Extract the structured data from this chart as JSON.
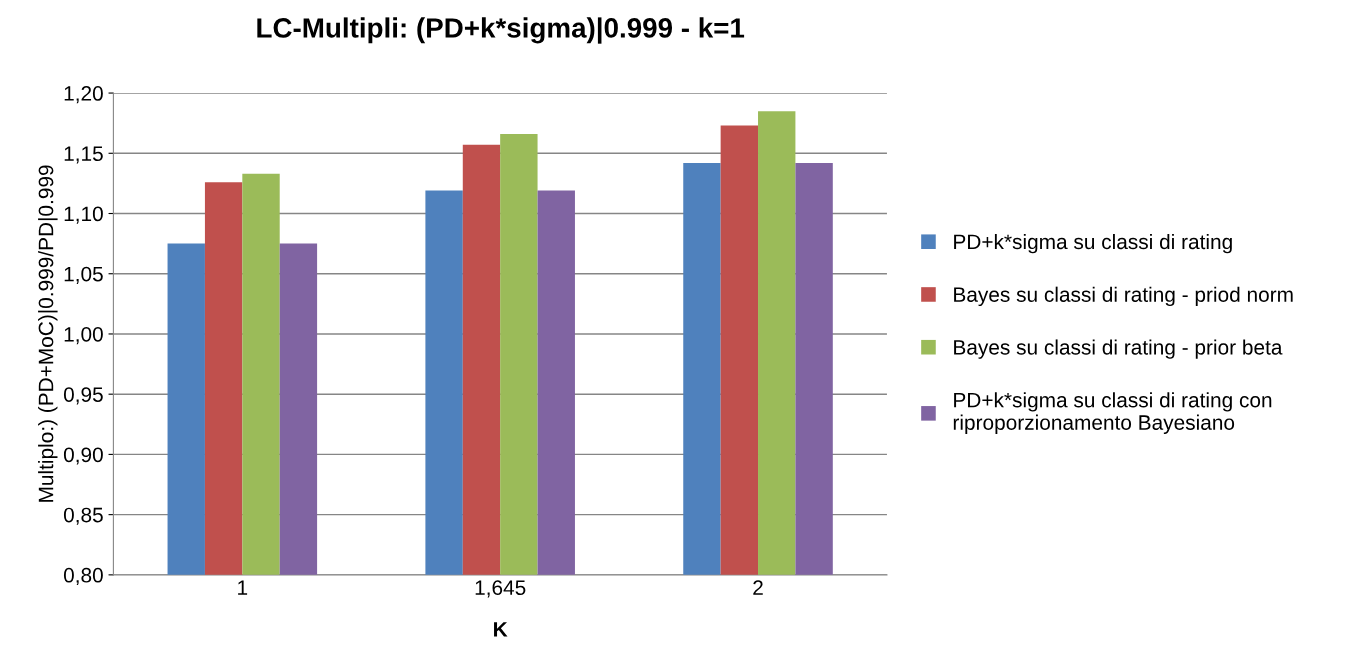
{
  "chart_data": {
    "type": "bar",
    "title": "LC-Multipli: (PD+k*sigma)|0.999 - k=1",
    "xlabel": "K",
    "ylabel": "Multiplo:) (PD+MoC)|0.999/PD|0.999",
    "categories": [
      "1",
      "1,645",
      "2"
    ],
    "series": [
      {
        "name": "PD+k*sigma su classi di rating",
        "color": "#4f81bd",
        "values": [
          1.075,
          1.119,
          1.142
        ]
      },
      {
        "name": "Bayes su classi di rating - priod norm",
        "color": "#c0504d",
        "values": [
          1.126,
          1.157,
          1.173
        ]
      },
      {
        "name": "Bayes su classi di rating - prior beta",
        "color": "#9bbb59",
        "values": [
          1.133,
          1.166,
          1.185
        ]
      },
      {
        "name": "PD+k*sigma su classi di rating con\nriproporzionamento Bayesiano",
        "color": "#8064a2",
        "values": [
          1.075,
          1.119,
          1.142
        ]
      }
    ],
    "ylim": [
      0.8,
      1.2
    ],
    "yticks": [
      {
        "value": 0.8,
        "label": "0,80"
      },
      {
        "value": 0.85,
        "label": "0,85"
      },
      {
        "value": 0.9,
        "label": "0,90"
      },
      {
        "value": 0.95,
        "label": "0,95"
      },
      {
        "value": 1.0,
        "label": "1,00"
      },
      {
        "value": 1.05,
        "label": "1,05"
      },
      {
        "value": 1.1,
        "label": "1,10"
      },
      {
        "value": 1.15,
        "label": "1,15"
      },
      {
        "value": 1.2,
        "label": "1,20"
      }
    ],
    "grid": "y",
    "legend": "right"
  }
}
